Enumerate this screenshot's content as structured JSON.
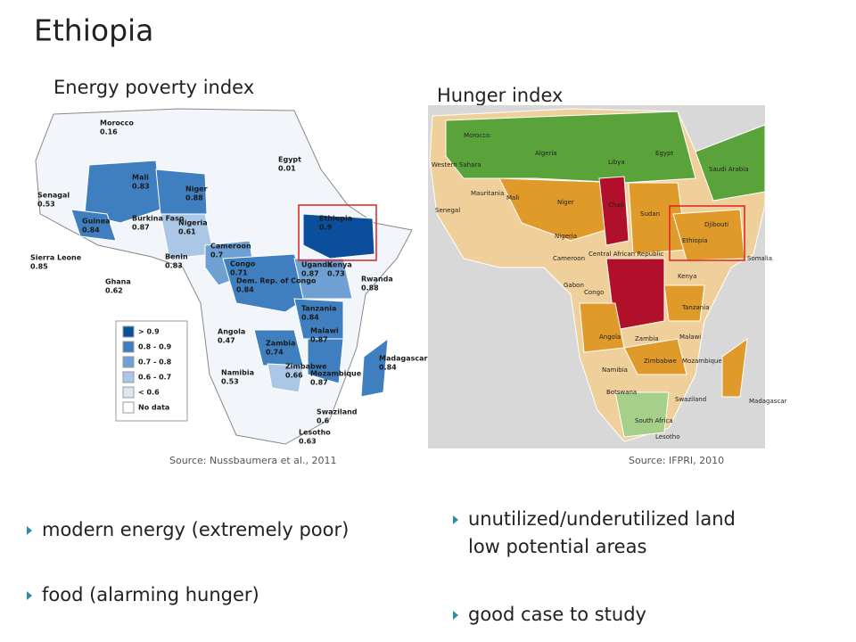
{
  "title": "Ethiopia",
  "energy_map": {
    "heading": "Energy poverty index",
    "source": "Source: Nussbaumera et al.,  2011",
    "labels": [
      {
        "country": "Morocco",
        "value": "0.16"
      },
      {
        "country": "Egypt",
        "value": "0.01"
      },
      {
        "country": "Senagal",
        "value": "0.53"
      },
      {
        "country": "Mali",
        "value": "0.83"
      },
      {
        "country": "Niger",
        "value": "0.88"
      },
      {
        "country": "Guinea",
        "value": "0.84"
      },
      {
        "country": "Burkina Faso",
        "value": "0.87"
      },
      {
        "country": "Nigeria",
        "value": "0.61"
      },
      {
        "country": "Sierra Leone",
        "value": "0.85"
      },
      {
        "country": "Benin",
        "value": "0.83"
      },
      {
        "country": "Ghana",
        "value": "0.62"
      },
      {
        "country": "Cameroon",
        "value": "0.7"
      },
      {
        "country": "Congo",
        "value": "0.71"
      },
      {
        "country": "Dem. Rep. of Congo",
        "value": "0.84"
      },
      {
        "country": "Ethiopia",
        "value": "0.9"
      },
      {
        "country": "Uganda",
        "value": "0.87"
      },
      {
        "country": "Kenya",
        "value": "0.73"
      },
      {
        "country": "Rwanda",
        "value": "0.88"
      },
      {
        "country": "Tanzania",
        "value": "0.84"
      },
      {
        "country": "Angola",
        "value": "0.47"
      },
      {
        "country": "Zambia",
        "value": "0.74"
      },
      {
        "country": "Malawi",
        "value": "0.87"
      },
      {
        "country": "Zimbabwe",
        "value": "0.66"
      },
      {
        "country": "Mozambique",
        "value": "0.87"
      },
      {
        "country": "Madagascar",
        "value": "0.84"
      },
      {
        "country": "Namibia",
        "value": "0.53"
      },
      {
        "country": "Swaziland",
        "value": "0.6"
      },
      {
        "country": "Lesotho",
        "value": "0.63"
      }
    ],
    "legend": [
      "> 0.9",
      "0.8 - 0.9",
      "0.7 - 0.8",
      "0.6 - 0.7",
      "< 0.6",
      "No data"
    ]
  },
  "hunger_map": {
    "heading": "Hunger index",
    "source": "Source: IFPRI, 2010",
    "labels": [
      "Morocco",
      "Algeria",
      "Libya",
      "Egypt",
      "Western Sahara",
      "Mauritania",
      "Mali",
      "Niger",
      "Chad",
      "Sudan",
      "Ethiopia",
      "Djibouti",
      "Senegal",
      "Nigeria",
      "Cameroon",
      "Central African Republic",
      "Congo",
      "Gabon",
      "Kenya",
      "Tanzania",
      "Angola",
      "Zambia",
      "Malawi",
      "Namibia",
      "Botswana",
      "Zimbabwe",
      "Mozambique",
      "South Africa",
      "Lesotho",
      "Swaziland",
      "Madagascar",
      "Saudi Arabia",
      "Somalia"
    ]
  },
  "bullets_left": [
    "modern energy (extremely poor)",
    "food (alarming hunger)"
  ],
  "bullets_right": [
    "unutilized/underutilized land low potential areas",
    "good case to study"
  ]
}
